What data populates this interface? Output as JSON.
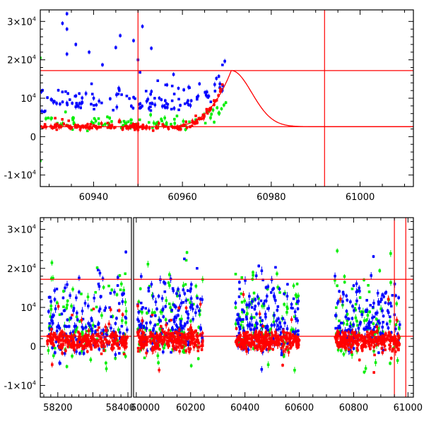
{
  "chart_data": [
    {
      "type": "scatter",
      "title": "",
      "xlabel": "",
      "ylabel": "",
      "xlim": [
        60928,
        61012
      ],
      "ylim": [
        -13000,
        33000
      ],
      "xticks": [
        60940,
        60960,
        60980,
        61000
      ],
      "xtick_labels": [
        "60940",
        "60960",
        "60980",
        "61000"
      ],
      "yticks": [
        -10000,
        0,
        10000,
        20000,
        30000
      ],
      "ytick_labels": [
        {
          "mant": "-1×10",
          "exp": "4"
        },
        {
          "mant": "0",
          "exp": ""
        },
        {
          "mant": "10",
          "exp": "4"
        },
        {
          "mant": "2×10",
          "exp": "4"
        },
        {
          "mant": "3×10",
          "exp": "4"
        }
      ],
      "hlines": [
        17200,
        2600
      ],
      "vlines": [
        60950,
        60992
      ],
      "series": [
        {
          "name": "blue",
          "color": "#0000ff",
          "x_range": [
            60928,
            60970
          ],
          "level": 9000,
          "spread": 5000,
          "count": 130,
          "extra_points": [
            [
              60933,
              29500
            ],
            [
              60934,
              32000
            ],
            [
              60934,
              28000
            ],
            [
              60934,
              21500
            ],
            [
              60936,
              24000
            ],
            [
              60939,
              22000
            ],
            [
              60942,
              18700
            ],
            [
              60945,
              23200
            ],
            [
              60946,
              26300
            ],
            [
              60949,
              25000
            ],
            [
              60950,
              20000
            ],
            [
              60951,
              28700
            ],
            [
              60953,
              23000
            ],
            [
              60958,
              16200
            ]
          ]
        },
        {
          "name": "green",
          "color": "#00ee00",
          "x_range": [
            60928,
            60970
          ],
          "level": 3500,
          "spread": 2800,
          "count": 90,
          "extra_points": [
            [
              60928,
              20500
            ],
            [
              60928,
              -6300
            ]
          ]
        },
        {
          "name": "red",
          "color": "#ff0000",
          "x_range": [
            60928,
            60969.5
          ],
          "level": 2500,
          "spread": 1300,
          "count": 170
        }
      ],
      "model_curve": {
        "color": "#ff0000",
        "baseline": 2600,
        "peak": 17200,
        "peak_x": 60971,
        "rise_start": 60955,
        "decay_scale": 6.5
      }
    },
    {
      "type": "scatter",
      "title": "",
      "xlabel": "",
      "ylabel": "",
      "ylim": [
        -13000,
        33000
      ],
      "broken_x_axis": [
        {
          "xlim": [
            58150,
            58410
          ],
          "xticks": [
            58200,
            58300,
            58400
          ],
          "xtick_labels": [
            "58200",
            "",
            "58400"
          ]
        },
        {
          "xlim": [
            59990,
            61020
          ],
          "xticks": [
            60000,
            60200,
            60400,
            60600,
            60800,
            61000
          ],
          "xtick_labels": [
            "60000",
            "60200",
            "60400",
            "60600",
            "60800",
            "61000"
          ]
        }
      ],
      "yticks": [
        -10000,
        0,
        10000,
        20000,
        30000
      ],
      "ytick_labels": [
        {
          "mant": "-1×10",
          "exp": "4"
        },
        {
          "mant": "0",
          "exp": ""
        },
        {
          "mant": "10",
          "exp": "4"
        },
        {
          "mant": "2×10",
          "exp": "4"
        },
        {
          "mant": "3×10",
          "exp": "4"
        }
      ],
      "hlines": [
        17200,
        2600
      ],
      "vlines": [
        60950,
        60992
      ],
      "seasons": [
        {
          "start": 58170,
          "end": 58400
        },
        {
          "start": 60005,
          "end": 60245
        },
        {
          "start": 60365,
          "end": 60600
        },
        {
          "start": 60730,
          "end": 60970
        }
      ],
      "series": [
        {
          "name": "red",
          "color": "#ff0000",
          "level": 1500,
          "spread": 2500,
          "count_per_season": 260
        },
        {
          "name": "blue",
          "color": "#0000ff",
          "level": 6000,
          "spread": 9000,
          "count_per_season": 150
        },
        {
          "name": "green",
          "color": "#00ee00",
          "level": 5000,
          "spread": 11000,
          "count_per_season": 90
        }
      ]
    }
  ]
}
